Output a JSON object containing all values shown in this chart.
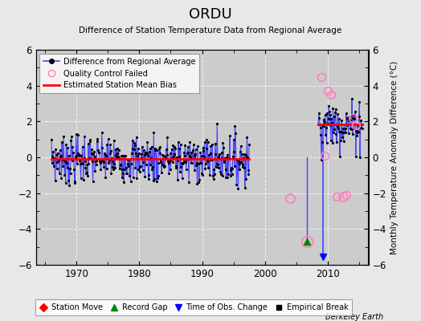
{
  "title": "ORDU",
  "subtitle": "Difference of Station Temperature Data from Regional Average",
  "ylabel": "Monthly Temperature Anomaly Difference (°C)",
  "xlabel_bottom": "Berkeley Earth",
  "ylim": [
    -6,
    6
  ],
  "xlim": [
    1963.5,
    2016.5
  ],
  "background_color": "#e8e8e8",
  "plot_bg_color": "#cccccc",
  "bias_early": -0.1,
  "bias_late": 1.85,
  "early_x_start": 1966.0,
  "early_x_end": 1997.5,
  "late_x_start": 2008.5,
  "late_x_end": 2015.5,
  "record_gap_x": 2006.75,
  "record_gap_y": -4.7,
  "time_obs_change_x": 2009.25,
  "qc_isolated_1": [
    2004.0,
    -2.3
  ],
  "qc_isolated_2": [
    2012.5,
    -2.2
  ],
  "seed": 7
}
